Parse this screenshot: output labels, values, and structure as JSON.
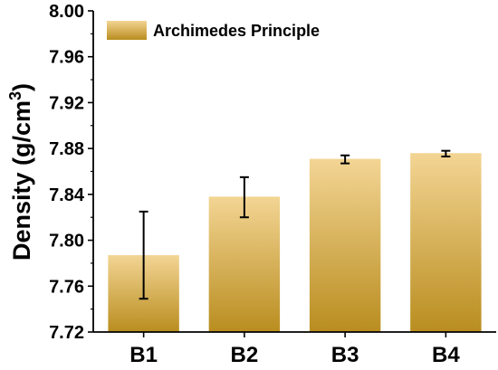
{
  "chart_data": {
    "type": "bar",
    "categories": [
      "B1",
      "B2",
      "B3",
      "B4"
    ],
    "series": [
      {
        "name": "Archimedes Principle",
        "values": [
          7.787,
          7.838,
          7.871,
          7.876
        ],
        "error_low": [
          7.749,
          7.82,
          7.867,
          7.873
        ],
        "error_high": [
          7.825,
          7.855,
          7.874,
          7.878
        ]
      }
    ],
    "ylabel": "Density (g/cm3)",
    "ylabel_base": "Density (g/cm",
    "ylabel_sup": "3",
    "ylabel_close": ")",
    "xlabel": "",
    "ylim": [
      7.72,
      8.0
    ],
    "yticks": [
      "7.72",
      "7.76",
      "7.80",
      "7.84",
      "7.88",
      "7.92",
      "7.96",
      "8.00"
    ],
    "ytick_values": [
      7.72,
      7.76,
      7.8,
      7.84,
      7.88,
      7.92,
      7.96,
      8.0
    ],
    "legend_position": "top-left",
    "grid": false,
    "bar_color_top": "#f3d594",
    "bar_color_bottom": "#b98d1f"
  }
}
